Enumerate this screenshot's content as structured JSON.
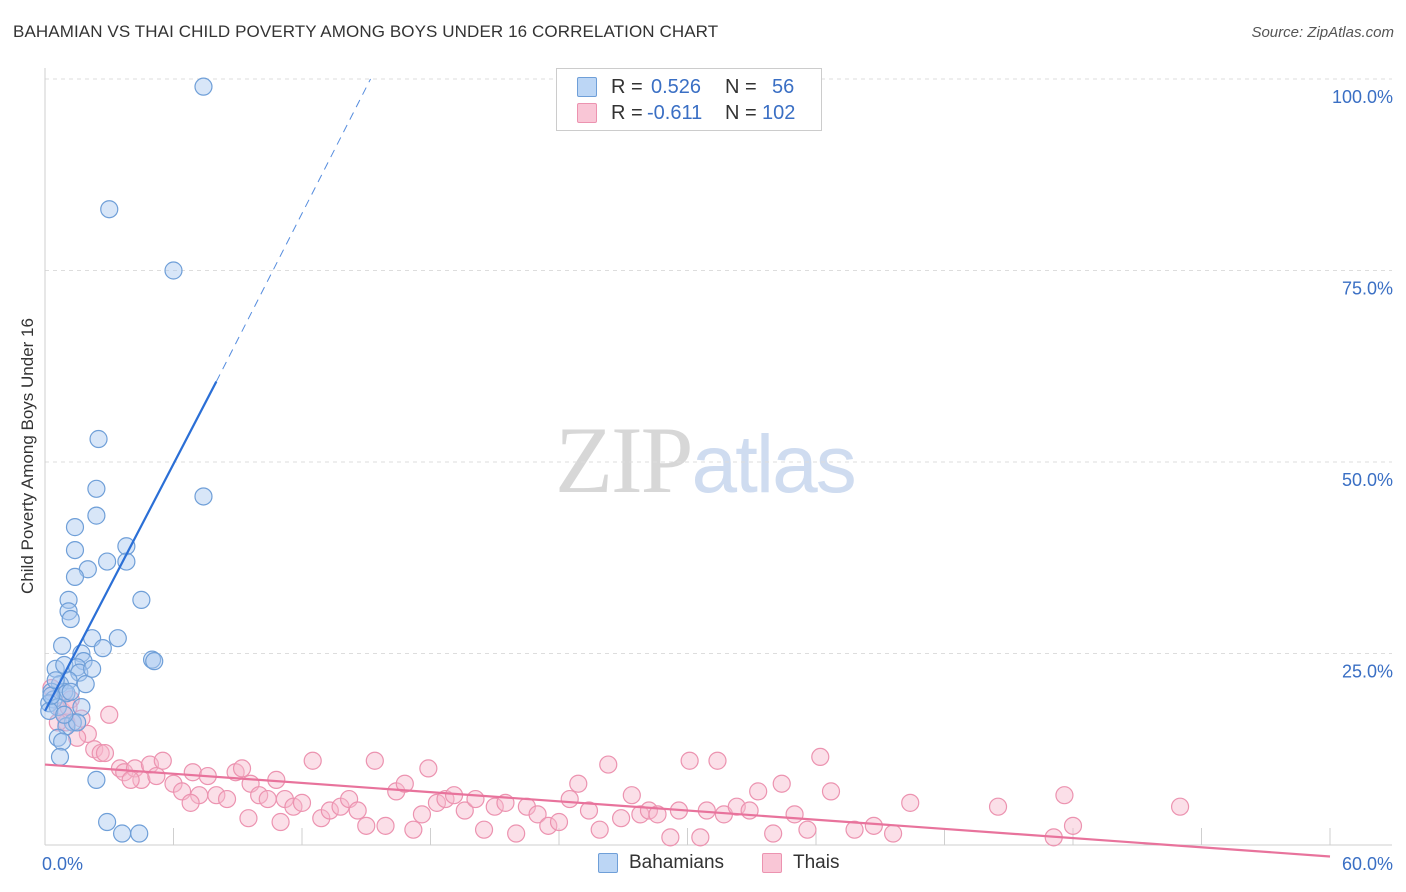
{
  "title": "BAHAMIAN VS THAI CHILD POVERTY AMONG BOYS UNDER 16 CORRELATION CHART",
  "source": "Source: ZipAtlas.com",
  "watermark": {
    "zip": "ZIP",
    "atlas": "atlas"
  },
  "colors": {
    "blue_fill": "#a8c8f0",
    "blue_stroke": "#6f9fd8",
    "blue_line": "#2b6fd6",
    "pink_fill": "#f6b8cc",
    "pink_stroke": "#ec93b0",
    "pink_line": "#e8739c",
    "tick_text": "#3a6fc4",
    "grid": "#dddddd"
  },
  "legend_top": {
    "rows": [
      {
        "r_label": "R =",
        "r_value": "0.526",
        "n_label": "N =",
        "n_value": "56"
      },
      {
        "r_label": "R =",
        "r_value": "-0.611",
        "n_label": "N =",
        "n_value": "102"
      }
    ]
  },
  "legend_bottom": {
    "bahamians": "Bahamians",
    "thais": "Thais"
  },
  "chart_data": {
    "type": "scatter",
    "title": "BAHAMIAN VS THAI CHILD POVERTY AMONG BOYS UNDER 16 CORRELATION CHART",
    "xlabel": "",
    "ylabel": "Child Poverty Among Boys Under 16",
    "xlim": [
      0,
      60
    ],
    "ylim": [
      0,
      100
    ],
    "x_tick_labels": [
      "0.0%",
      "60.0%"
    ],
    "y_tick_labels": [
      "100.0%",
      "75.0%",
      "50.0%",
      "25.0%"
    ],
    "y_tick_values": [
      100,
      75,
      50,
      25
    ],
    "series": [
      {
        "name": "Bahamians",
        "r": 0.526,
        "n": 56,
        "trend": {
          "x0": 0,
          "y0": 17.5,
          "x1": 8,
          "y1": 60.5,
          "dash_x1": 15.2,
          "dash_y1": 100
        },
        "points": [
          [
            7.4,
            99.0
          ],
          [
            3.0,
            83.0
          ],
          [
            6.0,
            75.0
          ],
          [
            2.5,
            53.0
          ],
          [
            7.4,
            45.5
          ],
          [
            2.4,
            46.5
          ],
          [
            2.4,
            43.0
          ],
          [
            1.4,
            41.5
          ],
          [
            1.4,
            38.5
          ],
          [
            3.8,
            39.0
          ],
          [
            2.9,
            37.0
          ],
          [
            3.8,
            37.0
          ],
          [
            2.0,
            36.0
          ],
          [
            1.4,
            35.0
          ],
          [
            4.5,
            32.0
          ],
          [
            1.1,
            32.0
          ],
          [
            1.1,
            30.5
          ],
          [
            1.2,
            29.5
          ],
          [
            3.4,
            27.0
          ],
          [
            2.2,
            27.0
          ],
          [
            0.8,
            26.0
          ],
          [
            2.7,
            25.7
          ],
          [
            1.7,
            25.0
          ],
          [
            1.8,
            24.0
          ],
          [
            5.0,
            24.2
          ],
          [
            5.1,
            24.0
          ],
          [
            0.5,
            23.0
          ],
          [
            0.9,
            23.5
          ],
          [
            1.5,
            23.2
          ],
          [
            1.6,
            22.5
          ],
          [
            1.1,
            21.5
          ],
          [
            0.7,
            21.0
          ],
          [
            1.9,
            21.0
          ],
          [
            0.3,
            20.0
          ],
          [
            0.9,
            20.0
          ],
          [
            0.4,
            19.0
          ],
          [
            0.2,
            18.5
          ],
          [
            1.0,
            19.8
          ],
          [
            0.6,
            18.0
          ],
          [
            1.7,
            18.0
          ],
          [
            0.2,
            17.5
          ],
          [
            1.3,
            16.0
          ],
          [
            1.0,
            15.5
          ],
          [
            1.5,
            16.0
          ],
          [
            0.6,
            14.0
          ],
          [
            0.8,
            13.5
          ],
          [
            0.7,
            11.5
          ],
          [
            2.4,
            8.5
          ],
          [
            2.9,
            3.0
          ],
          [
            3.6,
            1.5
          ],
          [
            4.4,
            1.5
          ],
          [
            0.3,
            19.5
          ],
          [
            0.5,
            21.5
          ],
          [
            2.2,
            23.0
          ],
          [
            1.2,
            20.0
          ],
          [
            0.9,
            17.0
          ]
        ]
      },
      {
        "name": "Thais",
        "r": -0.611,
        "n": 102,
        "trend": {
          "x0": 0,
          "y0": 10.5,
          "x1": 60,
          "y1": -1.5
        },
        "points": [
          [
            0.3,
            20.5
          ],
          [
            0.8,
            17.5
          ],
          [
            1.2,
            19.0
          ],
          [
            1.0,
            16.0
          ],
          [
            1.7,
            16.5
          ],
          [
            3.0,
            17.0
          ],
          [
            1.1,
            18.0
          ],
          [
            2.0,
            14.5
          ],
          [
            2.3,
            12.5
          ],
          [
            2.6,
            12.0
          ],
          [
            3.5,
            10.0
          ],
          [
            3.7,
            9.5
          ],
          [
            4.2,
            10.0
          ],
          [
            4.5,
            8.5
          ],
          [
            4.9,
            10.5
          ],
          [
            5.2,
            9.0
          ],
          [
            5.5,
            11.0
          ],
          [
            6.0,
            8.0
          ],
          [
            6.4,
            7.0
          ],
          [
            6.9,
            9.5
          ],
          [
            7.2,
            6.5
          ],
          [
            7.6,
            9.0
          ],
          [
            8.0,
            6.5
          ],
          [
            8.5,
            6.0
          ],
          [
            8.9,
            9.5
          ],
          [
            9.2,
            10.0
          ],
          [
            9.6,
            8.0
          ],
          [
            10.0,
            6.5
          ],
          [
            10.4,
            6.0
          ],
          [
            10.8,
            8.5
          ],
          [
            11.2,
            6.0
          ],
          [
            11.6,
            5.0
          ],
          [
            12.0,
            5.5
          ],
          [
            12.5,
            11.0
          ],
          [
            12.9,
            3.5
          ],
          [
            13.3,
            4.5
          ],
          [
            13.8,
            5.0
          ],
          [
            14.2,
            6.0
          ],
          [
            14.6,
            4.5
          ],
          [
            15.0,
            2.5
          ],
          [
            15.4,
            11.0
          ],
          [
            15.9,
            2.5
          ],
          [
            16.4,
            7.0
          ],
          [
            16.8,
            8.0
          ],
          [
            17.2,
            2.0
          ],
          [
            17.6,
            4.0
          ],
          [
            17.9,
            10.0
          ],
          [
            18.3,
            5.5
          ],
          [
            18.7,
            6.0
          ],
          [
            19.1,
            6.5
          ],
          [
            19.6,
            4.5
          ],
          [
            20.1,
            6.0
          ],
          [
            20.5,
            2.0
          ],
          [
            21.0,
            5.0
          ],
          [
            21.5,
            5.5
          ],
          [
            22.0,
            1.5
          ],
          [
            22.5,
            5.0
          ],
          [
            23.0,
            4.0
          ],
          [
            23.5,
            2.5
          ],
          [
            24.0,
            3.0
          ],
          [
            24.5,
            6.0
          ],
          [
            24.9,
            8.0
          ],
          [
            25.4,
            4.5
          ],
          [
            25.9,
            2.0
          ],
          [
            26.3,
            10.5
          ],
          [
            26.9,
            3.5
          ],
          [
            27.4,
            6.5
          ],
          [
            27.8,
            4.0
          ],
          [
            28.2,
            4.5
          ],
          [
            28.6,
            4.0
          ],
          [
            29.2,
            1.0
          ],
          [
            29.6,
            4.5
          ],
          [
            30.1,
            11.0
          ],
          [
            30.6,
            1.0
          ],
          [
            30.9,
            4.5
          ],
          [
            31.4,
            11.0
          ],
          [
            31.7,
            4.0
          ],
          [
            32.3,
            5.0
          ],
          [
            32.9,
            4.5
          ],
          [
            33.3,
            7.0
          ],
          [
            34.0,
            1.5
          ],
          [
            34.4,
            8.0
          ],
          [
            35.0,
            4.0
          ],
          [
            35.6,
            2.0
          ],
          [
            36.2,
            11.5
          ],
          [
            36.7,
            7.0
          ],
          [
            37.8,
            2.0
          ],
          [
            38.7,
            2.5
          ],
          [
            39.6,
            1.5
          ],
          [
            40.4,
            5.5
          ],
          [
            44.5,
            5.0
          ],
          [
            47.1,
            1.0
          ],
          [
            47.6,
            6.5
          ],
          [
            48.0,
            2.5
          ],
          [
            53.0,
            5.0
          ],
          [
            1.5,
            14.0
          ],
          [
            2.8,
            12.0
          ],
          [
            0.6,
            16.0
          ],
          [
            4.0,
            8.5
          ],
          [
            6.8,
            5.5
          ],
          [
            9.5,
            3.5
          ],
          [
            11.0,
            3.0
          ]
        ]
      }
    ],
    "legend": [
      "Bahamians",
      "Thais"
    ],
    "grid": true
  }
}
